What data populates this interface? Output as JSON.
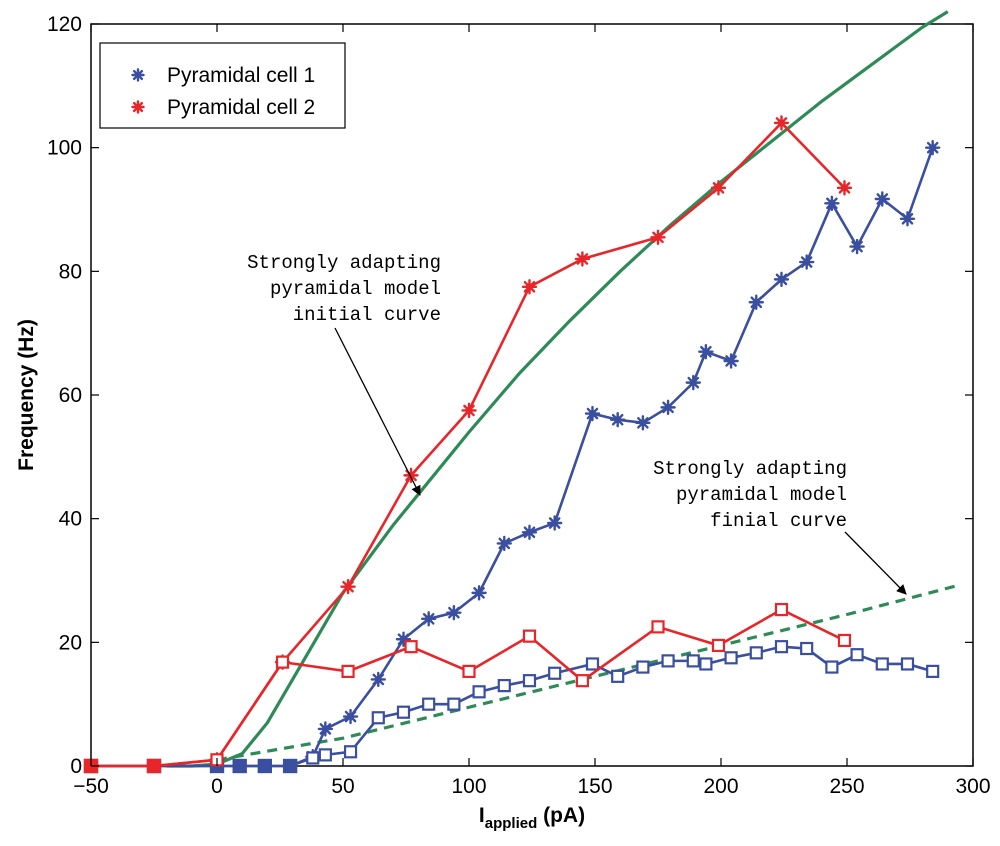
{
  "chart_data": {
    "type": "line",
    "title": "",
    "xlabel_main": "I",
    "xlabel_sub": "applied",
    "xlabel_unit": " (pA)",
    "ylabel": "Frequency (Hz)",
    "xlim": [
      -50,
      300
    ],
    "ylim": [
      0,
      120
    ],
    "xticks": [
      -50,
      0,
      50,
      100,
      150,
      200,
      250,
      300
    ],
    "xtick_labels": [
      "−50",
      "0",
      "50",
      "100",
      "150",
      "200",
      "250",
      "300"
    ],
    "yticks": [
      0,
      20,
      40,
      60,
      80,
      100,
      120
    ],
    "ytick_labels": [
      "0",
      "20",
      "40",
      "60",
      "80",
      "100",
      "120"
    ],
    "grid": false,
    "legend_position": "top-left",
    "legend": [
      {
        "label": "Pyramidal cell 1",
        "color": "#3a4fa0",
        "marker": "star"
      },
      {
        "label": "Pyramidal cell 2",
        "color": "#e8262a",
        "marker": "star"
      }
    ],
    "series": [
      {
        "name": "Pyramidal cell 1",
        "kind": "initial",
        "color": "#3a4fa0",
        "marker": "star",
        "x": [
          -50,
          -25,
          0,
          9,
          19,
          29,
          38,
          43,
          53,
          64,
          74,
          84,
          94,
          104,
          114,
          124,
          134,
          149,
          159,
          169,
          179,
          189,
          194,
          204,
          214,
          224,
          234,
          244,
          254,
          264,
          274,
          284
        ],
        "y": [
          0,
          0,
          0,
          0,
          0,
          0,
          1.5,
          6,
          8,
          14,
          20.5,
          23.8,
          24.8,
          28,
          36,
          37.8,
          39.3,
          57,
          56,
          55.5,
          58,
          62,
          67,
          65.5,
          75,
          78.7,
          81.5,
          91,
          84,
          91.7,
          88.5,
          100
        ]
      },
      {
        "name": "Pyramidal cell 2",
        "kind": "initial",
        "color": "#e8262a",
        "marker": "star",
        "x": [
          -50,
          -25,
          0,
          26,
          52,
          77,
          100,
          124,
          145,
          175,
          199,
          224,
          249
        ],
        "y": [
          0,
          0,
          1,
          16.8,
          29,
          47,
          57.5,
          77.5,
          82,
          85.5,
          93.5,
          104,
          93.5
        ]
      },
      {
        "name": "Pyramidal cell 1",
        "kind": "final",
        "color": "#3a4fa0",
        "marker": "square",
        "x": [
          -50,
          -25,
          0,
          9,
          19,
          29,
          38,
          43,
          53,
          64,
          74,
          84,
          94,
          104,
          114,
          124,
          134,
          149,
          159,
          169,
          179,
          189,
          194,
          204,
          214,
          224,
          234,
          244,
          254,
          264,
          274,
          284
        ],
        "y": [
          0,
          0,
          0,
          0,
          0,
          0,
          1.3,
          1.8,
          2.3,
          7.8,
          8.7,
          10,
          10,
          12,
          13,
          13.8,
          15,
          16.5,
          14.5,
          16,
          17,
          17,
          16.5,
          17.5,
          18.3,
          19.3,
          19,
          16,
          18,
          16.5,
          16.5,
          15.3
        ]
      },
      {
        "name": "Pyramidal cell 2",
        "kind": "final",
        "color": "#e8262a",
        "marker": "square",
        "x": [
          -50,
          -25,
          0,
          26,
          52,
          77,
          100,
          124,
          145,
          175,
          199,
          224,
          249
        ],
        "y": [
          0,
          0,
          1,
          16.8,
          15.3,
          19.3,
          15.3,
          21,
          13.8,
          22.5,
          19.5,
          25.3,
          20.3
        ]
      },
      {
        "name": "Strongly adapting pyramidal model initial curve",
        "kind": "model",
        "color": "#2e8b57",
        "style": "solid",
        "x": [
          -20,
          -10,
          0,
          10,
          20,
          30,
          40,
          50,
          60,
          70,
          80,
          100,
          120,
          140,
          160,
          180,
          200,
          220,
          240,
          260,
          280,
          290
        ],
        "y": [
          0,
          0,
          0.3,
          2,
          7,
          14,
          21,
          28,
          33.5,
          39,
          44,
          54,
          63.5,
          72,
          80,
          87.5,
          94.5,
          101,
          107.5,
          113.5,
          119.5,
          122
        ]
      },
      {
        "name": "Strongly adapting pyramidal model finial curve",
        "kind": "model",
        "color": "#2e8b57",
        "style": "dashed",
        "x": [
          0,
          50,
          100,
          150,
          200,
          250,
          295
        ],
        "y": [
          1,
          4.5,
          9.5,
          14.5,
          19.5,
          24.5,
          29.3
        ]
      }
    ],
    "annotations": [
      {
        "lines": [
          "Strongly adapting",
          "pyramidal model",
          "initial curve"
        ],
        "arrow_to": [
          80,
          43
        ]
      },
      {
        "lines": [
          "Strongly adapting",
          "pyramidal model",
          "finial curve"
        ],
        "arrow_to": [
          275,
          27.5
        ]
      }
    ]
  }
}
